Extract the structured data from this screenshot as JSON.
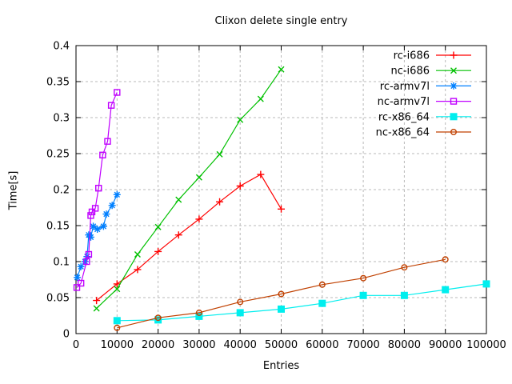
{
  "window": {
    "background_color": "#ffffff",
    "border_color": "#000000",
    "grid_color": "#b9b9b9",
    "text_color": "#000000"
  },
  "chart_data": {
    "type": "line",
    "title": "Clixon delete single entry",
    "xlabel": "Entries",
    "ylabel": "Time[s]",
    "xlim": [
      0,
      100000
    ],
    "ylim": [
      0,
      0.4
    ],
    "grid": true,
    "legend_position": "top-right-inside",
    "x_ticks": [
      0,
      10000,
      20000,
      30000,
      40000,
      50000,
      60000,
      70000,
      80000,
      90000,
      100000
    ],
    "x_tick_labels": [
      "0",
      "10000",
      "20000",
      "30000",
      "40000",
      "50000",
      "60000",
      "70000",
      "80000",
      "90000",
      "100000"
    ],
    "y_ticks": [
      0,
      0.05,
      0.1,
      0.15,
      0.2,
      0.25,
      0.3,
      0.35,
      0.4
    ],
    "y_tick_labels": [
      "0",
      "0.05",
      "0.1",
      "0.15",
      "0.2",
      "0.25",
      "0.3",
      "0.35",
      "0.4"
    ],
    "series": [
      {
        "name": "rc-i686",
        "color": "#ff0000",
        "marker": "plus",
        "points": [
          [
            5000,
            0.046
          ],
          [
            10000,
            0.069
          ],
          [
            15000,
            0.089
          ],
          [
            20000,
            0.114
          ],
          [
            25000,
            0.137
          ],
          [
            30000,
            0.159
          ],
          [
            35000,
            0.183
          ],
          [
            40000,
            0.205
          ],
          [
            45000,
            0.221
          ],
          [
            50000,
            0.173
          ]
        ]
      },
      {
        "name": "nc-i686",
        "color": "#00c000",
        "marker": "cross",
        "points": [
          [
            5000,
            0.035
          ],
          [
            10000,
            0.062
          ],
          [
            15000,
            0.11
          ],
          [
            20000,
            0.148
          ],
          [
            25000,
            0.186
          ],
          [
            30000,
            0.217
          ],
          [
            35000,
            0.249
          ],
          [
            40000,
            0.297
          ],
          [
            45000,
            0.326
          ],
          [
            50000,
            0.367
          ]
        ]
      },
      {
        "name": "rc-armv7l",
        "color": "#0080ff",
        "marker": "asterisk",
        "points": [
          [
            300,
            0.078
          ],
          [
            1200,
            0.093
          ],
          [
            2200,
            0.1
          ],
          [
            2700,
            0.107
          ],
          [
            3100,
            0.137
          ],
          [
            3600,
            0.134
          ],
          [
            4200,
            0.149
          ],
          [
            5200,
            0.145
          ],
          [
            6700,
            0.149
          ],
          [
            7400,
            0.166
          ],
          [
            8800,
            0.178
          ],
          [
            10000,
            0.193
          ]
        ]
      },
      {
        "name": "nc-armv7l",
        "color": "#c000ff",
        "marker": "open-square",
        "points": [
          [
            200,
            0.064
          ],
          [
            1200,
            0.07
          ],
          [
            2600,
            0.1
          ],
          [
            3100,
            0.11
          ],
          [
            3600,
            0.164
          ],
          [
            3900,
            0.169
          ],
          [
            4700,
            0.174
          ],
          [
            5500,
            0.202
          ],
          [
            6500,
            0.248
          ],
          [
            7700,
            0.267
          ],
          [
            8600,
            0.317
          ],
          [
            10000,
            0.335
          ]
        ]
      },
      {
        "name": "rc-x86_64",
        "color": "#00eeee",
        "marker": "filled-square",
        "points": [
          [
            10000,
            0.018
          ],
          [
            20000,
            0.019
          ],
          [
            30000,
            0.024
          ],
          [
            40000,
            0.029
          ],
          [
            50000,
            0.034
          ],
          [
            60000,
            0.042
          ],
          [
            70000,
            0.053
          ],
          [
            80000,
            0.053
          ],
          [
            90000,
            0.061
          ],
          [
            100000,
            0.069
          ]
        ]
      },
      {
        "name": "nc-x86_64",
        "color": "#c04000",
        "marker": "open-circle",
        "points": [
          [
            10000,
            0.008
          ],
          [
            20000,
            0.022
          ],
          [
            30000,
            0.029
          ],
          [
            40000,
            0.044
          ],
          [
            50000,
            0.055
          ],
          [
            60000,
            0.068
          ],
          [
            70000,
            0.077
          ],
          [
            80000,
            0.092
          ],
          [
            90000,
            0.103
          ]
        ]
      }
    ]
  }
}
